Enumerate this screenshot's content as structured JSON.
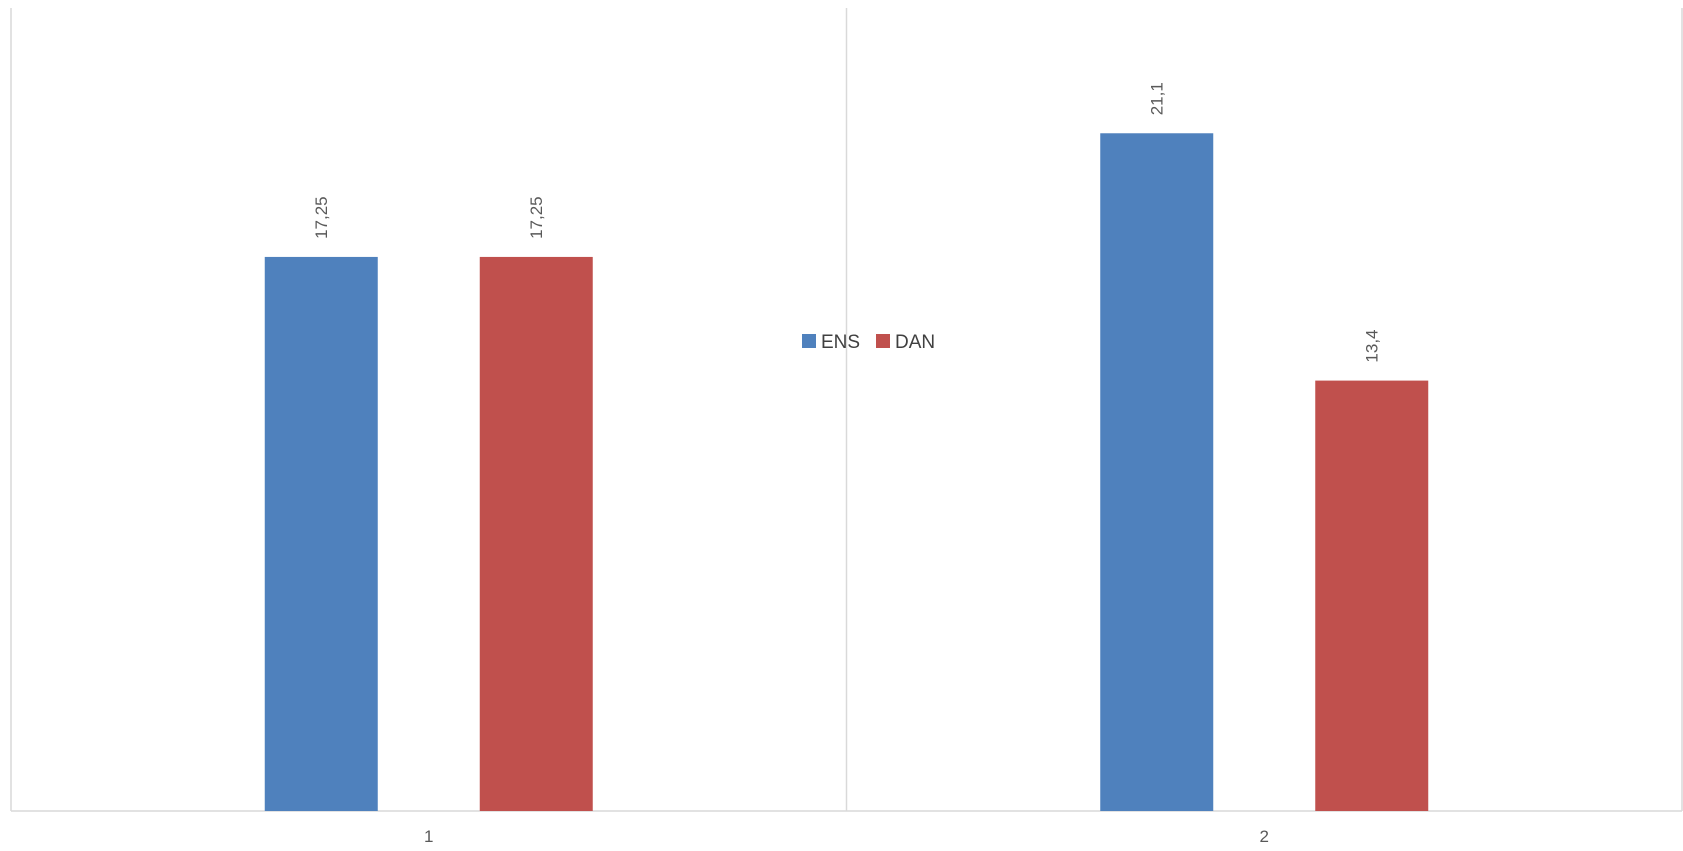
{
  "chart_data": {
    "type": "bar",
    "categories": [
      "1",
      "2"
    ],
    "series": [
      {
        "name": "ENS",
        "color": "#4f81bd",
        "values": [
          17.25,
          21.1
        ],
        "labels": [
          "17,25",
          "21,1"
        ]
      },
      {
        "name": "DAN",
        "color": "#c0504d",
        "values": [
          17.25,
          13.4
        ],
        "labels": [
          "17,25",
          "13,4"
        ]
      }
    ],
    "ylim": [
      0,
      25
    ],
    "grid": "vertical-category-separators",
    "legend_position": "center",
    "data_label_orientation": "vertical"
  }
}
